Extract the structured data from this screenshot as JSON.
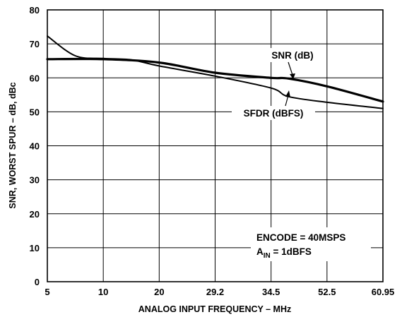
{
  "chart_data": {
    "type": "line",
    "xlabel": "ANALOG INPUT FREQUENCY – MHz",
    "ylabel": "SNR, WORST SPUR – dB, dBc",
    "x_ticks": [
      "5",
      "10",
      "20",
      "29.2",
      "34.5",
      "52.5",
      "60.95"
    ],
    "y_ticks": [
      0,
      10,
      20,
      30,
      40,
      50,
      60,
      70,
      80
    ],
    "ylim": [
      0,
      80
    ],
    "grid": true,
    "series": [
      {
        "name": "SNR (dB)",
        "x": [
          5,
          10,
          20,
          29.2,
          34.5,
          40,
          52.5,
          60.95
        ],
        "y": [
          65.5,
          65.5,
          64.5,
          61.5,
          60.0,
          59.8,
          57.5,
          53.0
        ]
      },
      {
        "name": "SFDR (dBFS)",
        "x": [
          5,
          7.5,
          10,
          15,
          20,
          29.2,
          34.5,
          40,
          52.5,
          60.95
        ],
        "y": [
          72.3,
          66.5,
          65.7,
          65.3,
          63.5,
          60.5,
          57.0,
          54.5,
          52.8,
          51.0
        ]
      }
    ],
    "annotations": [
      "ENCODE = 40MSPS",
      "A",
      "IN",
      " = 1dBFS"
    ]
  }
}
